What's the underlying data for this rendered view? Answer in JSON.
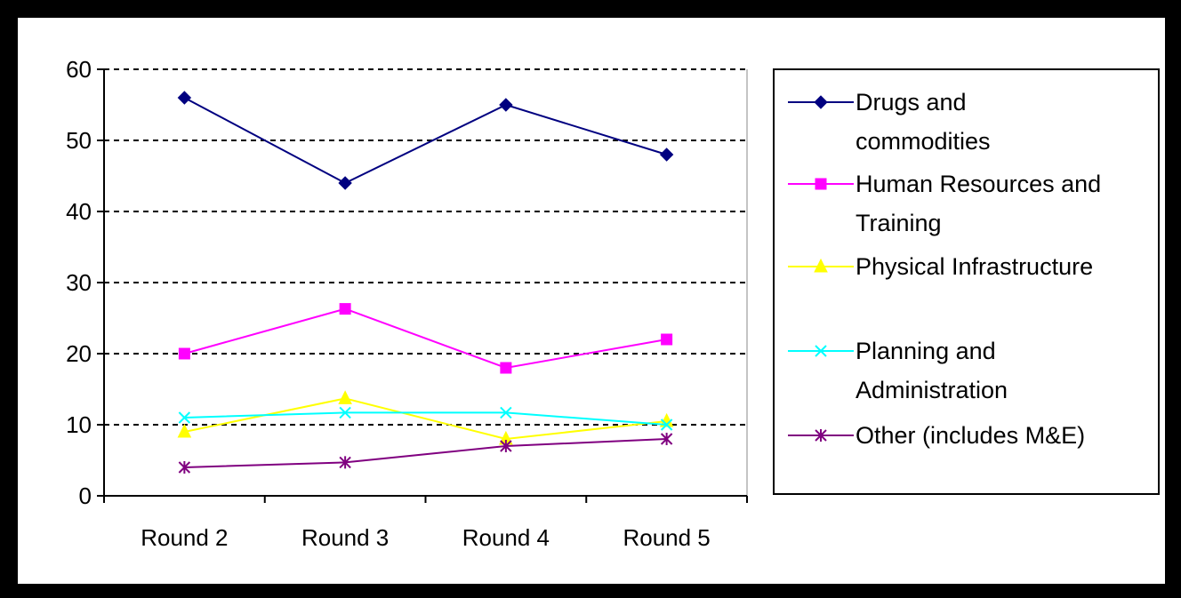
{
  "chart_data": {
    "type": "line",
    "title": "",
    "xlabel": "",
    "ylabel": "",
    "categories": [
      "Round 2",
      "Round 3",
      "Round 4",
      "Round 5"
    ],
    "ylim": [
      0,
      60
    ],
    "yticks": [
      "0",
      "10",
      "20",
      "30",
      "40",
      "50",
      "60"
    ],
    "grid": "horizontal-dashed",
    "legend_position": "right",
    "series": [
      {
        "name": "Drugs and commodities",
        "legend_lines": [
          "Drugs and",
          "commodities"
        ],
        "color": "#000080",
        "marker": "diamond",
        "values": [
          56,
          44,
          55,
          48
        ]
      },
      {
        "name": "Human Resources and Training",
        "legend_lines": [
          "Human Resources and",
          "Training"
        ],
        "color": "#FF00FF",
        "marker": "square",
        "values": [
          20,
          26.3,
          18,
          22
        ]
      },
      {
        "name": "Physical Infrastructure",
        "legend_lines": [
          "Physical Infrastructure"
        ],
        "color": "#FFFF00",
        "marker": "triangle",
        "values": [
          9,
          13.7,
          8,
          10.5
        ]
      },
      {
        "name": "Planning and Administration",
        "legend_lines": [
          "Planning and",
          "Administration"
        ],
        "color": "#00FFFF",
        "marker": "x",
        "values": [
          11,
          11.7,
          11.7,
          10
        ]
      },
      {
        "name": "Other (includes M&E)",
        "legend_lines": [
          "Other (includes M&E)"
        ],
        "color": "#800080",
        "marker": "star",
        "values": [
          4,
          4.7,
          7,
          8
        ]
      }
    ]
  }
}
